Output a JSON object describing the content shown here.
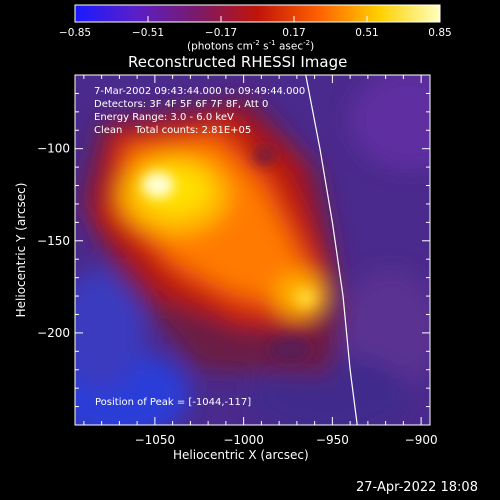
{
  "colorbar": {
    "ticks": [
      "-0.85",
      "-0.51",
      "-0.17",
      "0.17",
      "0.51",
      "0.85"
    ],
    "units_prefix": "(photons cm",
    "units_sup1": "-2",
    "units_mid": " s",
    "units_sup2": "-1",
    "units_mid2": " asec",
    "units_sup3": "-2",
    "units_suffix": ")",
    "colors": [
      "#1a1aff",
      "#5a1fc8",
      "#7a1a6a",
      "#c0140a",
      "#ff6000",
      "#ffd000",
      "#ffffc0"
    ]
  },
  "chart_data": {
    "type": "heatmap",
    "title": "Reconstructed RHESSI Image",
    "xlabel": "Heliocentric X (arcsec)",
    "ylabel": "Heliocentric Y (arcsec)",
    "xlim": [
      -1095,
      -895
    ],
    "ylim": [
      -250,
      -60
    ],
    "x_ticks": [
      -1050,
      -1000,
      -950,
      -900
    ],
    "x_tick_labels": [
      "−1050",
      "−1000",
      "−950",
      "−900"
    ],
    "y_ticks": [
      -100,
      -150,
      -200
    ],
    "y_tick_labels": [
      "−100",
      "−150",
      "−200"
    ],
    "colorbar_range": [
      -0.85,
      0.85
    ],
    "peak_position": [
      -1044,
      -117
    ],
    "annotations": [
      "7-Mar-2002 09:43:44.000 to 09:49:44.000",
      "Detectors: 3F 4F 5F 6F 7F 8F, Att 0",
      "Energy Range: 3.0 - 6.0 keV",
      "Clean    Total counts: 2.81E+05"
    ],
    "peak_label": "Position of Peak = [-1044,-117]",
    "limb_curve": [
      [
        -965,
        -60
      ],
      [
        -957,
        -100
      ],
      [
        -950,
        -140
      ],
      [
        -944,
        -180
      ],
      [
        -940,
        -220
      ],
      [
        -936,
        -250
      ]
    ]
  },
  "footer": {
    "timestamp": "27-Apr-2022 18:08"
  }
}
